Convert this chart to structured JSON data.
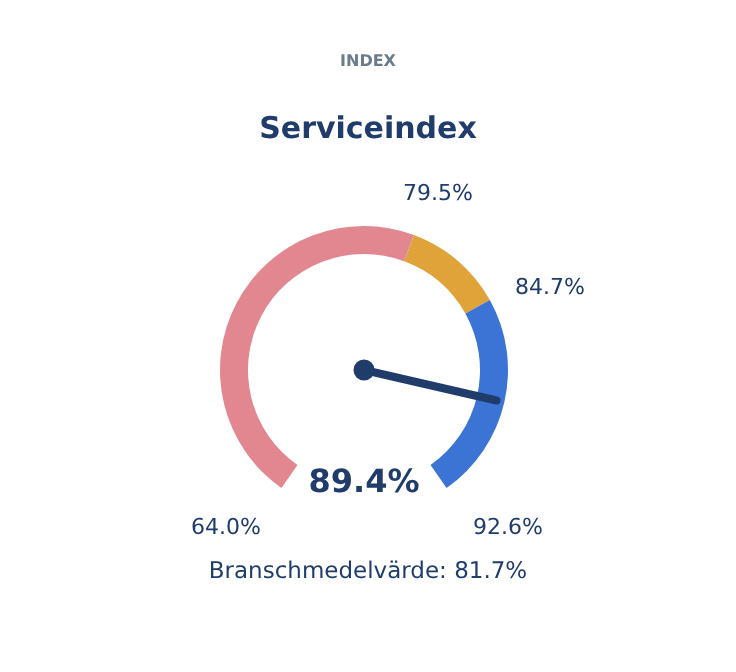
{
  "chart_data": {
    "type": "donut",
    "title": "Serviceindex",
    "subtitle": "INDEX",
    "categories": [
      "79.5%",
      "84.7%",
      "92.6%"
    ],
    "values": [
      57,
      14,
      29
    ],
    "colors": [
      "#e2878f",
      "#e0a33a",
      "#3b74d5"
    ],
    "needle": "92.6%",
    "annotations": [
      "64.0%",
      "89.4%",
      "Branschmedelvärde: 81.7%"
    ]
  }
}
